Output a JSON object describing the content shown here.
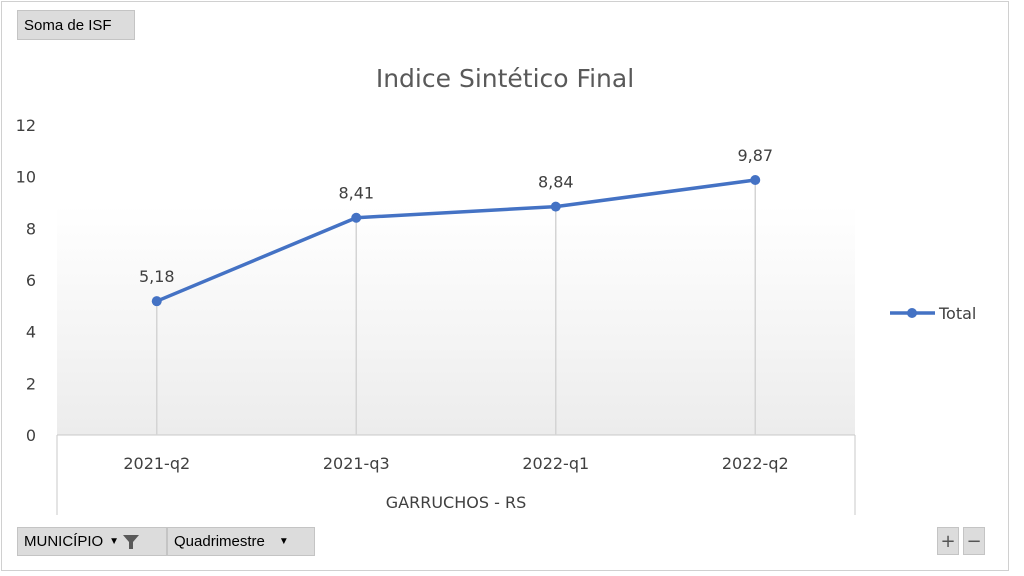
{
  "value_field": "Soma de ISF",
  "filters": {
    "municipio_label": "MUNICÍPIO",
    "quadrimestre_label": "Quadrimestre"
  },
  "zoom": {
    "plus": "+",
    "minus": "−"
  },
  "chart_data": {
    "type": "line",
    "title": "Indice Sintético Final",
    "categories": [
      "2021-q2",
      "2021-q3",
      "2022-q1",
      "2022-q2"
    ],
    "group_label": "GARRUCHOS - RS",
    "series": [
      {
        "name": "Total",
        "values": [
          5.18,
          8.41,
          8.84,
          9.87
        ],
        "labels": [
          "5,18",
          "8,41",
          "8,84",
          "9,87"
        ],
        "color": "#4472c4"
      }
    ],
    "ylim": [
      0,
      12
    ],
    "yticks": [
      0,
      2,
      4,
      6,
      8,
      10,
      12
    ],
    "legend": "right"
  }
}
